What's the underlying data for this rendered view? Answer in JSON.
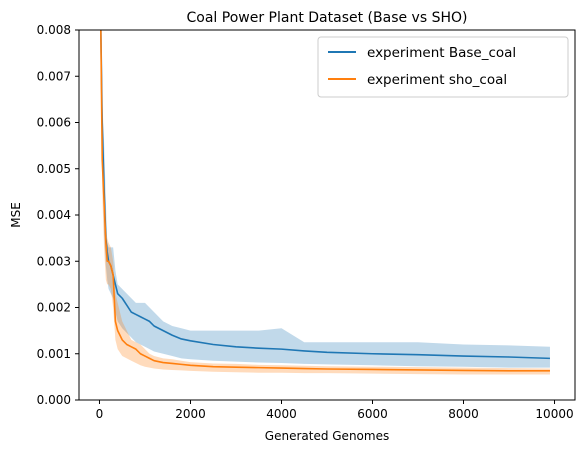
{
  "chart_data": {
    "type": "line",
    "title": "Coal Power Plant Dataset (Base vs SHO)",
    "xlabel": "Generated Genomes",
    "ylabel": "MSE",
    "xlim": [
      -450,
      10450
    ],
    "ylim": [
      0.0,
      0.008
    ],
    "xticks": [
      0,
      2000,
      4000,
      6000,
      8000,
      10000
    ],
    "xtick_labels": [
      "0",
      "2000",
      "4000",
      "6000",
      "8000",
      "10000"
    ],
    "yticks": [
      0.0,
      0.001,
      0.002,
      0.003,
      0.004,
      0.005,
      0.006,
      0.007,
      0.008
    ],
    "ytick_labels": [
      "0.000",
      "0.001",
      "0.002",
      "0.003",
      "0.004",
      "0.005",
      "0.006",
      "0.007",
      "0.008"
    ],
    "grid": false,
    "legend_position": "top-right",
    "series": [
      {
        "name": "experiment Base_coal",
        "color": "#1f77b4",
        "band_color": "#1f77b4",
        "x": [
          30,
          60,
          100,
          140,
          170,
          200,
          250,
          300,
          350,
          400,
          500,
          600,
          700,
          800,
          900,
          1000,
          1100,
          1200,
          1400,
          1600,
          1800,
          2000,
          2500,
          3000,
          3500,
          4000,
          4500,
          5000,
          6000,
          7000,
          8000,
          9000,
          9900
        ],
        "y": [
          0.008,
          0.006,
          0.0046,
          0.0035,
          0.0032,
          0.003,
          0.0029,
          0.0027,
          0.0025,
          0.0023,
          0.0022,
          0.00205,
          0.0019,
          0.00185,
          0.0018,
          0.00175,
          0.0017,
          0.0016,
          0.0015,
          0.0014,
          0.00132,
          0.00128,
          0.0012,
          0.00115,
          0.00112,
          0.0011,
          0.00106,
          0.00103,
          0.001,
          0.00098,
          0.00095,
          0.00093,
          0.0009
        ],
        "lower": [
          0.008,
          0.0055,
          0.0036,
          0.0029,
          0.0026,
          0.0024,
          0.0023,
          0.0022,
          0.0019,
          0.0017,
          0.00155,
          0.00145,
          0.00135,
          0.00125,
          0.0012,
          0.00115,
          0.0011,
          0.00105,
          0.001,
          0.00095,
          0.0009,
          0.00088,
          0.00085,
          0.00083,
          0.00081,
          0.0008,
          0.00078,
          0.00077,
          0.00075,
          0.00073,
          0.00072,
          0.0007,
          0.0007
        ],
        "upper": [
          0.008,
          0.0065,
          0.0056,
          0.0043,
          0.0034,
          0.0033,
          0.0033,
          0.0033,
          0.0028,
          0.0025,
          0.0024,
          0.0023,
          0.0022,
          0.0021,
          0.0021,
          0.0021,
          0.002,
          0.0019,
          0.0017,
          0.0016,
          0.00155,
          0.0015,
          0.0015,
          0.0015,
          0.0015,
          0.00155,
          0.00125,
          0.00125,
          0.00125,
          0.00125,
          0.0012,
          0.00118,
          0.00115
        ]
      },
      {
        "name": "experiment sho_coal",
        "color": "#ff7f0e",
        "band_color": "#ff7f0e",
        "x": [
          30,
          60,
          100,
          140,
          170,
          200,
          250,
          300,
          350,
          400,
          500,
          600,
          700,
          800,
          900,
          1000,
          1100,
          1200,
          1400,
          1600,
          1800,
          2000,
          2500,
          3000,
          3500,
          4000,
          4500,
          5000,
          6000,
          7000,
          8000,
          9000,
          9900
        ],
        "y": [
          0.008,
          0.0052,
          0.0043,
          0.0034,
          0.003,
          0.003,
          0.0029,
          0.0027,
          0.0017,
          0.0015,
          0.0013,
          0.0012,
          0.00115,
          0.0011,
          0.001,
          0.00095,
          0.0009,
          0.00085,
          0.00081,
          0.00079,
          0.00077,
          0.00075,
          0.00072,
          0.00071,
          0.0007,
          0.00069,
          0.00068,
          0.00067,
          0.00066,
          0.00065,
          0.00064,
          0.00063,
          0.00063
        ],
        "lower": [
          0.008,
          0.0045,
          0.0033,
          0.0026,
          0.0025,
          0.0025,
          0.0024,
          0.002,
          0.0013,
          0.0011,
          0.00095,
          0.0009,
          0.00085,
          0.0008,
          0.00075,
          0.00072,
          0.0007,
          0.00068,
          0.00066,
          0.00065,
          0.00064,
          0.00063,
          0.00061,
          0.0006,
          0.00059,
          0.00059,
          0.00058,
          0.00058,
          0.00057,
          0.00056,
          0.00055,
          0.00055,
          0.00055
        ],
        "upper": [
          0.008,
          0.0058,
          0.0048,
          0.0038,
          0.0035,
          0.0034,
          0.0033,
          0.003,
          0.0023,
          0.0021,
          0.0017,
          0.0015,
          0.0013,
          0.00125,
          0.0012,
          0.0011,
          0.001,
          0.00095,
          0.0009,
          0.00088,
          0.00085,
          0.00082,
          0.00079,
          0.00078,
          0.00076,
          0.00075,
          0.00074,
          0.00073,
          0.00072,
          0.00071,
          0.0007,
          0.00069,
          0.00068
        ]
      }
    ]
  }
}
